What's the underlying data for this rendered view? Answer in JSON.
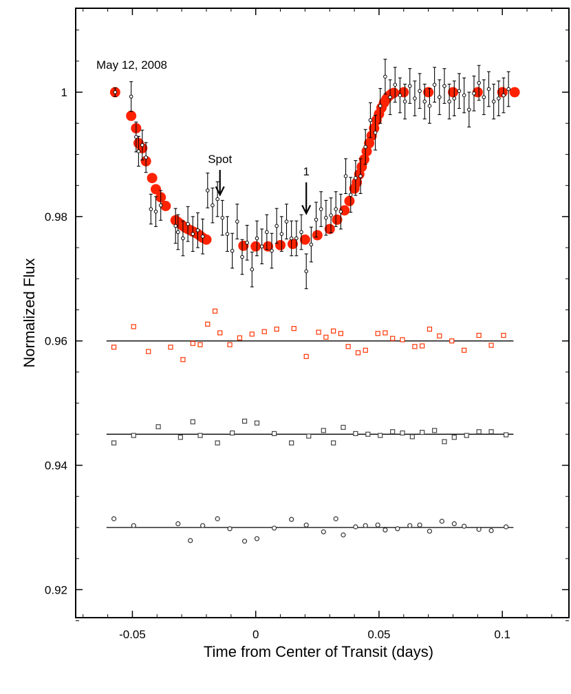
{
  "chart_data": {
    "type": "scatter",
    "date_label": "May 12, 2008",
    "xlabel": "Time from Center of Transit (days)",
    "ylabel": "Normalized Flux",
    "xlim": [
      -0.073,
      0.127
    ],
    "ylim": [
      0.9155,
      1.0135
    ],
    "x_ticks": [
      -0.05,
      0,
      0.05,
      0.1
    ],
    "x_tick_labels": [
      "-0.05",
      "0",
      "0.05",
      "0.1"
    ],
    "y_ticks": [
      0.92,
      0.94,
      0.96,
      0.98,
      1.0
    ],
    "y_tick_labels": [
      "0.92",
      "0.94",
      "0.96",
      "0.98",
      "1"
    ],
    "annotations": [
      {
        "text": "Spot",
        "x": -0.0145,
        "y_arrow_top": 0.9875,
        "y_arrow_tip": 0.9835
      },
      {
        "text": "1",
        "x": 0.0205,
        "y_arrow_top": 0.9855,
        "y_arrow_tip": 0.9805
      }
    ],
    "model": {
      "name": "transit model",
      "color": "#ff2200",
      "x": [
        -0.057,
        -0.0505,
        -0.0485,
        -0.0475,
        -0.046,
        -0.0445,
        -0.042,
        -0.0405,
        -0.0385,
        -0.0365,
        -0.0325,
        -0.0315,
        -0.0305,
        -0.0295,
        -0.0285,
        -0.0275,
        -0.0265,
        -0.0255,
        -0.0245,
        -0.0235,
        -0.0225,
        -0.0215,
        -0.02,
        -0.005,
        0.0,
        0.005,
        0.01,
        0.015,
        0.02,
        0.025,
        0.03,
        0.033,
        0.036,
        0.038,
        0.04,
        0.041,
        0.042,
        0.043,
        0.044,
        0.045,
        0.046,
        0.047,
        0.048,
        0.049,
        0.05,
        0.051,
        0.052,
        0.053,
        0.054,
        0.055,
        0.056,
        0.06,
        0.07,
        0.08,
        0.09,
        0.1,
        0.105
      ],
      "y": [
        1.0,
        0.9962,
        0.9942,
        0.9918,
        0.991,
        0.9889,
        0.9862,
        0.9844,
        0.9831,
        0.9817,
        0.9794,
        0.9791,
        0.9788,
        0.9785,
        0.9782,
        0.978,
        0.9778,
        0.9776,
        0.9774,
        0.9772,
        0.9769,
        0.9766,
        0.9763,
        0.9753,
        0.9752,
        0.9752,
        0.9754,
        0.9756,
        0.9763,
        0.977,
        0.978,
        0.9795,
        0.981,
        0.9825,
        0.9845,
        0.9855,
        0.9868,
        0.988,
        0.9892,
        0.9905,
        0.9918,
        0.993,
        0.9942,
        0.9955,
        0.9965,
        0.9975,
        0.9983,
        0.9989,
        0.9994,
        0.9997,
        0.9999,
        1.0,
        1.0,
        1.0,
        1.0,
        1.0,
        1.0
      ]
    },
    "data": {
      "name": "photometry",
      "x": [
        -0.057,
        -0.0505,
        -0.0485,
        -0.0475,
        -0.046,
        -0.0445,
        -0.0425,
        -0.0405,
        -0.0385,
        -0.0325,
        -0.0315,
        -0.0295,
        -0.0275,
        -0.0255,
        -0.0235,
        -0.0215,
        -0.0195,
        -0.0175,
        -0.0155,
        -0.0135,
        -0.0115,
        -0.0095,
        -0.0075,
        -0.0055,
        -0.0035,
        -0.0015,
        0.0005,
        0.0025,
        0.0045,
        0.0065,
        0.0085,
        0.0105,
        0.0125,
        0.0145,
        0.0165,
        0.0185,
        0.0205,
        0.0225,
        0.0245,
        0.0265,
        0.0285,
        0.0305,
        0.0325,
        0.0345,
        0.0365,
        0.0385,
        0.0405,
        0.0425,
        0.0445,
        0.0465,
        0.0485,
        0.0505,
        0.0525,
        0.0545,
        0.0565,
        0.0585,
        0.0605,
        0.0625,
        0.0645,
        0.0665,
        0.0685,
        0.0705,
        0.0725,
        0.0745,
        0.0765,
        0.0785,
        0.0805,
        0.0825,
        0.0845,
        0.0865,
        0.0885,
        0.0905,
        0.0925,
        0.0945,
        0.0965,
        0.0985,
        0.1005,
        0.1025
      ],
      "y": [
        1.0,
        0.9993,
        0.9928,
        0.9905,
        0.9915,
        0.9895,
        0.9812,
        0.9808,
        0.9818,
        0.9785,
        0.9775,
        0.9765,
        0.9788,
        0.9772,
        0.9778,
        0.9768,
        0.9842,
        0.9818,
        0.9828,
        0.9798,
        0.9772,
        0.9745,
        0.9792,
        0.9735,
        0.9758,
        0.9715,
        0.9765,
        0.9752,
        0.9775,
        0.9745,
        0.9785,
        0.9772,
        0.9792,
        0.9765,
        0.9765,
        0.9775,
        0.9712,
        0.9755,
        0.9795,
        0.9812,
        0.9798,
        0.9802,
        0.9812,
        0.9808,
        0.9865,
        0.9835,
        0.9862,
        0.9865,
        0.9912,
        0.9955,
        0.9935,
        0.9978,
        1.0025,
        0.9992,
        1.0012,
        0.9995,
        0.9985,
        1.001,
        0.999,
        1.0002,
        0.9985,
        0.9978,
        1.0012,
        0.9992,
        1.001,
        0.9985,
        0.999,
        1.0002,
        0.9995,
        0.9972,
        0.9998,
        1.0015,
        0.9992,
        1.0005,
        0.9985,
        0.999,
        0.9995,
        1.0005
      ],
      "err": [
        0.0007,
        0.0024,
        0.0024,
        0.0024,
        0.0024,
        0.0024,
        0.0024,
        0.0024,
        0.0024,
        0.0028,
        0.0028,
        0.0028,
        0.0028,
        0.0028,
        0.0028,
        0.0028,
        0.0028,
        0.0028,
        0.0028,
        0.0028,
        0.0028,
        0.0028,
        0.0028,
        0.0028,
        0.0028,
        0.0028,
        0.0028,
        0.0028,
        0.0028,
        0.0028,
        0.0028,
        0.0028,
        0.0028,
        0.0028,
        0.0028,
        0.0028,
        0.0028,
        0.0028,
        0.0028,
        0.0028,
        0.0028,
        0.0028,
        0.0028,
        0.0028,
        0.0028,
        0.0028,
        0.0028,
        0.0028,
        0.0028,
        0.0028,
        0.0028,
        0.0028,
        0.0028,
        0.0028,
        0.0028,
        0.0028,
        0.0028,
        0.0028,
        0.0028,
        0.0028,
        0.0028,
        0.0028,
        0.0028,
        0.0028,
        0.0028,
        0.0028,
        0.0028,
        0.0028,
        0.0028,
        0.0028,
        0.0028,
        0.0028,
        0.0028,
        0.0028,
        0.0028,
        0.0028,
        0.0028,
        0.0028
      ]
    },
    "residual_series": [
      {
        "name": "residuals (red squares)",
        "color": "#ff3300",
        "marker": "square",
        "baseline": 0.96,
        "x": [
          -0.0575,
          -0.0495,
          -0.0435,
          -0.0345,
          -0.0295,
          -0.0255,
          -0.0225,
          -0.0195,
          -0.0165,
          -0.0145,
          -0.0105,
          -0.0065,
          -0.0015,
          0.0035,
          0.0085,
          0.0155,
          0.0205,
          0.0255,
          0.0285,
          0.0315,
          0.0345,
          0.0375,
          0.0415,
          0.0445,
          0.0495,
          0.0525,
          0.0555,
          0.0595,
          0.0645,
          0.0675,
          0.0705,
          0.0745,
          0.0795,
          0.0845,
          0.0905,
          0.0955,
          0.1005
        ],
        "y": [
          0.959,
          0.9623,
          0.9583,
          0.959,
          0.957,
          0.9596,
          0.9594,
          0.9627,
          0.9648,
          0.9613,
          0.9594,
          0.9605,
          0.9611,
          0.9615,
          0.9619,
          0.962,
          0.9575,
          0.9614,
          0.9606,
          0.9616,
          0.9612,
          0.9591,
          0.9581,
          0.9585,
          0.9612,
          0.9613,
          0.9604,
          0.9602,
          0.9591,
          0.9592,
          0.9619,
          0.9608,
          0.96,
          0.9585,
          0.9609,
          0.9593,
          0.9609
        ]
      },
      {
        "name": "residuals (gray squares)",
        "color": "#444444",
        "marker": "square",
        "baseline": 0.945,
        "x": [
          -0.0575,
          -0.0495,
          -0.0395,
          -0.0305,
          -0.0255,
          -0.0225,
          -0.0155,
          -0.0095,
          -0.0045,
          0.0005,
          0.0075,
          0.0145,
          0.0215,
          0.0275,
          0.0315,
          0.0355,
          0.0405,
          0.0455,
          0.0505,
          0.0555,
          0.0595,
          0.0635,
          0.0675,
          0.0725,
          0.0765,
          0.0805,
          0.0855,
          0.0905,
          0.0955,
          0.1015
        ],
        "y": [
          0.9436,
          0.9448,
          0.9462,
          0.9445,
          0.947,
          0.9448,
          0.9436,
          0.9452,
          0.9471,
          0.9468,
          0.9451,
          0.9436,
          0.9447,
          0.9456,
          0.9436,
          0.9461,
          0.9451,
          0.945,
          0.9448,
          0.9454,
          0.9452,
          0.9446,
          0.9453,
          0.9456,
          0.9438,
          0.9445,
          0.9448,
          0.9454,
          0.9454,
          0.9449
        ]
      },
      {
        "name": "residuals (black circles)",
        "color": "#333333",
        "marker": "circle",
        "baseline": 0.93,
        "x": [
          -0.0575,
          -0.0495,
          -0.0315,
          -0.0265,
          -0.0215,
          -0.0155,
          -0.0105,
          -0.0045,
          0.0005,
          0.0075,
          0.0145,
          0.0205,
          0.0275,
          0.0325,
          0.0355,
          0.0405,
          0.0445,
          0.0495,
          0.0525,
          0.0575,
          0.0625,
          0.0665,
          0.0705,
          0.0755,
          0.0805,
          0.0845,
          0.0905,
          0.0955,
          0.1015
        ],
        "y": [
          0.9314,
          0.9303,
          0.9306,
          0.9279,
          0.9303,
          0.9314,
          0.9298,
          0.9278,
          0.9282,
          0.9299,
          0.9313,
          0.9304,
          0.9293,
          0.9314,
          0.9288,
          0.9301,
          0.9303,
          0.9304,
          0.9296,
          0.9298,
          0.9303,
          0.9304,
          0.9294,
          0.931,
          0.9306,
          0.9302,
          0.9297,
          0.9295,
          0.9301
        ]
      }
    ]
  }
}
